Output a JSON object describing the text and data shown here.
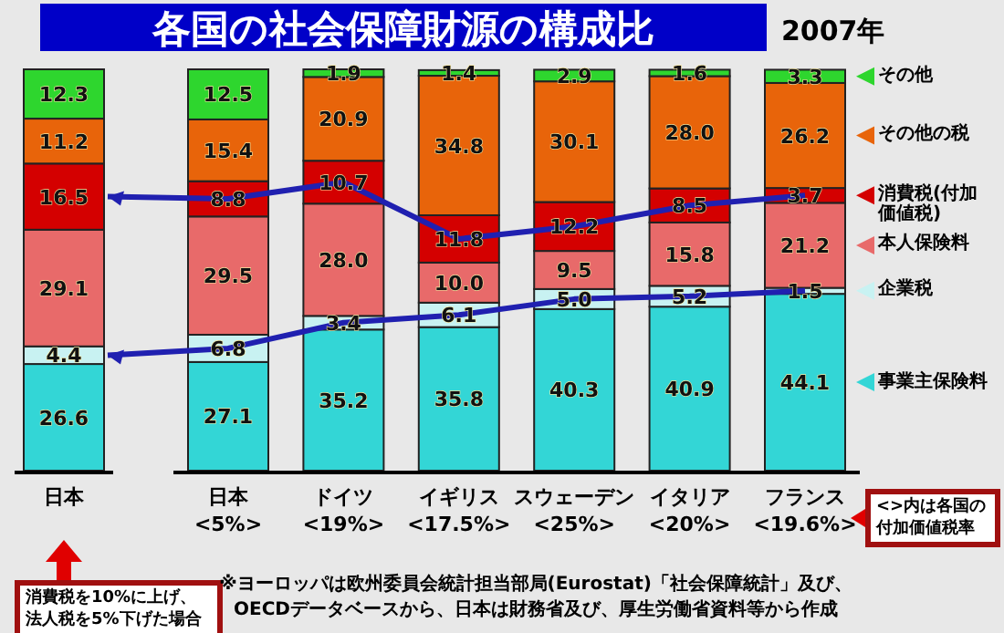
{
  "chart_data": {
    "type": "bar",
    "stacked": true,
    "title": "各国の社会保障財源の構成比",
    "subtitle": "2007年",
    "categories": [
      "日本",
      "日本<5%>",
      "ドイツ<19%>",
      "イギリス<17.5%>",
      "スウェーデン<25%>",
      "イタリア<20%>",
      "フランス<19.6%>"
    ],
    "series": [
      {
        "name": "事業主保険料",
        "color": "#33d6d6",
        "values": [
          26.6,
          27.1,
          35.2,
          35.8,
          40.3,
          40.9,
          44.1
        ],
        "value_labels": [
          "26.6",
          "27.1",
          "35.2",
          "35.8",
          "40.3",
          "40.9",
          "44.1"
        ]
      },
      {
        "name": "企業税",
        "color": "#c8f2f2",
        "values": [
          4.4,
          6.8,
          3.4,
          6.1,
          5.0,
          5.2,
          1.5
        ],
        "value_labels": [
          "4.4",
          "6.8",
          "3.4",
          "6.1",
          "5.0",
          "5.2",
          "1.5"
        ]
      },
      {
        "name": "本人保険料",
        "color": "#e86a6a",
        "values": [
          29.1,
          29.5,
          28.0,
          10.0,
          9.5,
          15.8,
          21.2
        ],
        "value_labels": [
          "29.1",
          "29.5",
          "28.0",
          "10.0",
          "9.5",
          "15.8",
          "21.2"
        ]
      },
      {
        "name": "消費税(付加価値税)",
        "color": "#d40000",
        "values": [
          16.5,
          8.8,
          10.7,
          11.8,
          12.2,
          8.5,
          3.7
        ],
        "value_labels": [
          "16.5",
          "8.8",
          "10.7",
          "11.8",
          "12.2",
          "8.5",
          "3.7"
        ]
      },
      {
        "name": "その他の税",
        "color": "#e8640a",
        "values": [
          11.2,
          15.4,
          20.9,
          34.8,
          30.1,
          28.0,
          26.2
        ],
        "value_labels": [
          "11.2",
          "15.4",
          "20.9",
          "34.8",
          "30.1",
          "28.0",
          "26.2"
        ]
      },
      {
        "name": "その他",
        "color": "#2ed62e",
        "values": [
          12.3,
          12.5,
          1.9,
          1.4,
          2.9,
          1.6,
          3.3
        ],
        "value_labels": [
          "12.3",
          "12.5",
          "1.9",
          "1.4",
          "2.9",
          "1.6",
          "3.3"
        ]
      }
    ],
    "legend": "right",
    "annotations": [
      "消費税を10%に上げ、法人税を5%下げた場合",
      "<>内は各国の付加価値税率",
      "※ヨーロッパは欧州委員会統計担当部局(Eurostat)「社会保障統計」及び、OECDデータベースから、日本は財務省及び、厚生労働省資料等から作成"
    ]
  }
}
